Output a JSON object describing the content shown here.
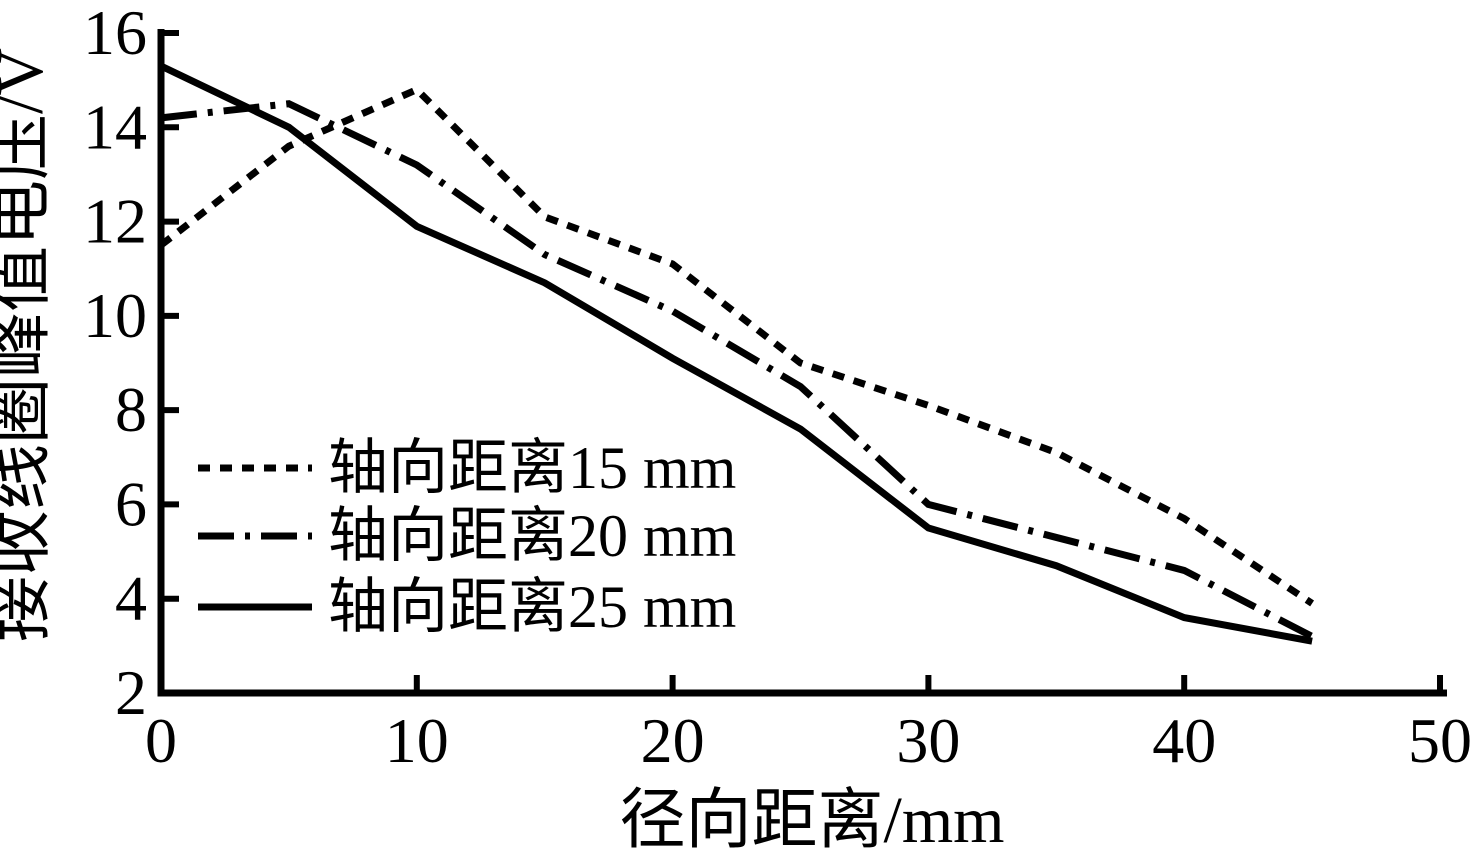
{
  "figure": {
    "background": "#ffffff",
    "line_color": "#000000"
  },
  "chart_data": {
    "type": "line",
    "title": "",
    "xlabel": "径向距离/mm",
    "ylabel": "接收线圈峰值电压/V",
    "x": [
      0,
      5,
      10,
      15,
      20,
      25,
      30,
      35,
      40,
      45
    ],
    "xlim": [
      0,
      50
    ],
    "ylim": [
      2,
      16
    ],
    "xticks": [
      0,
      10,
      20,
      30,
      40,
      50
    ],
    "yticks": [
      2,
      4,
      6,
      8,
      10,
      12,
      14,
      16
    ],
    "grid": false,
    "legend_position": "inside-left-middle",
    "series": [
      {
        "name": "轴向距离15 mm",
        "line_style": "dotted",
        "values": [
          11.5,
          13.6,
          14.8,
          12.1,
          11.1,
          9.0,
          8.1,
          7.1,
          5.7,
          3.9
        ]
      },
      {
        "name": "轴向距离20 mm",
        "line_style": "dashdot",
        "values": [
          14.2,
          14.5,
          13.2,
          11.3,
          10.1,
          8.5,
          6.0,
          5.3,
          4.6,
          3.2
        ]
      },
      {
        "name": "轴向距离25 mm",
        "line_style": "solid",
        "values": [
          15.3,
          14.0,
          11.9,
          10.7,
          9.1,
          7.6,
          5.5,
          4.7,
          3.6,
          3.1
        ]
      }
    ]
  }
}
